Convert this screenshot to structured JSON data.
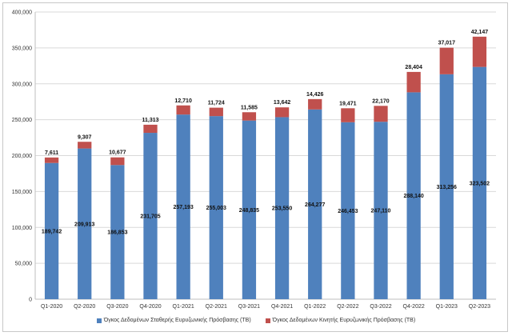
{
  "chart_data": {
    "type": "bar",
    "stacked": true,
    "categories": [
      "Q1-2020",
      "Q2-2020",
      "Q3-2020",
      "Q4-2020",
      "Q1-2021",
      "Q2-2021",
      "Q3-2021",
      "Q4-2021",
      "Q1-2022",
      "Q2-2022",
      "Q3-2022",
      "Q4-2022",
      "Q1-2023",
      "Q2-2023"
    ],
    "series": [
      {
        "name": "Όγκος Δεδομένων Σταθερής Ευρυζωνικής Πρόσβασης (TB)",
        "color": "#4f81bd",
        "values": [
          189742,
          209913,
          186853,
          231705,
          257193,
          255003,
          248835,
          253550,
          264277,
          246453,
          247110,
          288140,
          313256,
          323502
        ],
        "labels": [
          "189,742",
          "209,913",
          "186,853",
          "231,705",
          "257,193",
          "255,003",
          "248,835",
          "253,550",
          "264,277",
          "246,453",
          "247,110",
          "288,140",
          "313,256",
          "323,502"
        ]
      },
      {
        "name": "Όγκος Δεδομένων Κινητής Ευρυζωνικής Πρόσβασης (TB)",
        "color": "#c0504d",
        "values": [
          7611,
          9307,
          10677,
          11313,
          12710,
          11724,
          11585,
          13642,
          14426,
          19471,
          22170,
          28404,
          37017,
          42147
        ],
        "labels": [
          "7,611",
          "9,307",
          "10,677",
          "11,313",
          "12,710",
          "11,724",
          "11,585",
          "13,642",
          "14,426",
          "19,471",
          "22,170",
          "28,404",
          "37,017",
          "42,147"
        ]
      }
    ],
    "ylim": [
      0,
      400000
    ],
    "yticks": [
      0,
      50000,
      100000,
      150000,
      200000,
      250000,
      300000,
      350000,
      400000
    ],
    "ytick_labels": [
      "0",
      "50,000",
      "100,000",
      "150,000",
      "200,000",
      "250,000",
      "300,000",
      "350,000",
      "400,000"
    ],
    "grid": true,
    "legend_position": "bottom"
  }
}
